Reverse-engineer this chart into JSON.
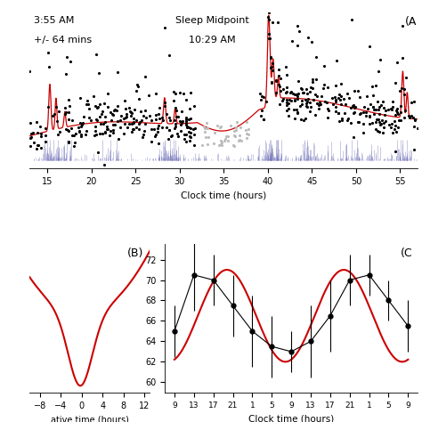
{
  "title_A_text1": "3:55 AM",
  "title_A_text2": "+/- 64 mins",
  "title_A_mid1": "Sleep Midpoint",
  "title_A_mid2": "10:29 AM",
  "panel_A_label": "(A",
  "panel_B_label": "(B)",
  "panel_C_label": "(C",
  "xlabel_A": "Clock time (hours)",
  "xlabel_B": "ative time (hours)",
  "xlabel_C": "Clock time (hours)",
  "xticks_A": [
    15,
    20,
    25,
    30,
    35,
    40,
    45,
    50,
    55
  ],
  "xticks_B": [
    -8,
    -4,
    0,
    4,
    8,
    12
  ],
  "yticks_C": [
    60,
    62,
    64,
    66,
    68,
    70,
    72
  ],
  "red_color": "#cc0000",
  "blue_color": "#7777bb",
  "bg_color": "#ffffff"
}
